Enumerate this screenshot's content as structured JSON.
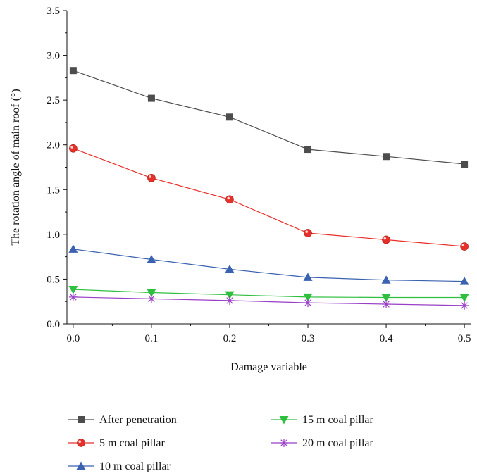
{
  "chart_data": {
    "type": "line",
    "xlabel": "Damage variable",
    "ylabel": "The rotation angle of main roof (°)",
    "xlim": [
      -0.008,
      0.508
    ],
    "ylim": [
      0,
      3.5
    ],
    "x": [
      0.0,
      0.1,
      0.2,
      0.3,
      0.4,
      0.5
    ],
    "x_ticks": [
      0.0,
      0.1,
      0.2,
      0.3,
      0.4,
      0.5
    ],
    "x_tick_labels": [
      "0.0",
      "0.1",
      "0.2",
      "0.3",
      "0.4",
      "0.5"
    ],
    "y_ticks": [
      0.0,
      0.5,
      1.0,
      1.5,
      2.0,
      2.5,
      3.0,
      3.5
    ],
    "y_tick_labels": [
      "0.0",
      "0.5",
      "1.0",
      "1.5",
      "2.0",
      "2.5",
      "3.0",
      "3.5"
    ],
    "grid": false,
    "legend_position": "bottom",
    "series": [
      {
        "name": "After penetration",
        "values": [
          2.83,
          2.52,
          2.31,
          1.95,
          1.87,
          1.785
        ],
        "color": "#4d4d4d",
        "marker": "square"
      },
      {
        "name": "5 m coal pillar",
        "values": [
          1.96,
          1.63,
          1.39,
          1.015,
          0.94,
          0.865
        ],
        "color": "#e8302a",
        "marker": "circle"
      },
      {
        "name": "10 m coal pillar",
        "values": [
          0.835,
          0.72,
          0.61,
          0.52,
          0.49,
          0.475
        ],
        "color": "#3a62b0",
        "marker": "triangle-up"
      },
      {
        "name": "15 m coal pillar",
        "values": [
          0.385,
          0.35,
          0.325,
          0.3,
          0.295,
          0.295
        ],
        "color": "#2fbf3f",
        "marker": "triangle-down"
      },
      {
        "name": "20 m coal pillar",
        "values": [
          0.3,
          0.28,
          0.26,
          0.235,
          0.22,
          0.205
        ],
        "color": "#9a3fc8",
        "marker": "asterisk"
      }
    ]
  }
}
